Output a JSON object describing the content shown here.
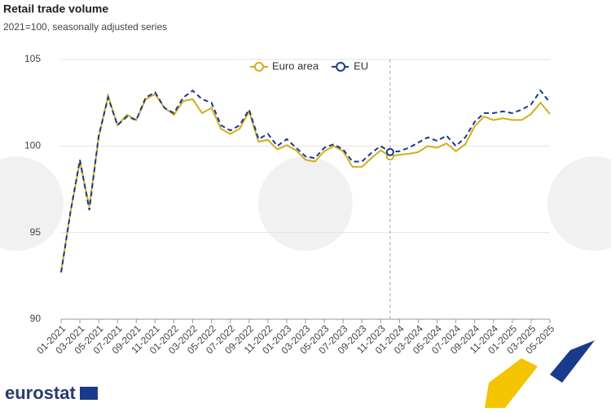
{
  "chart_data": {
    "type": "line",
    "title": "Retail trade volume",
    "subtitle": "2021=100, seasonally adjusted series",
    "source": "eurostat",
    "categories": [
      "01-2021",
      null,
      "03-2021",
      null,
      "05-2021",
      null,
      "07-2021",
      null,
      "09-2021",
      null,
      "11-2021",
      null,
      "01-2022",
      null,
      "03-2022",
      null,
      "05-2022",
      null,
      "07-2022",
      null,
      "09-2022",
      null,
      "11-2022",
      null,
      "01-2023",
      null,
      "03-2023",
      null,
      "05-2023",
      null,
      "07-2023",
      null,
      "09-2023",
      null,
      "11-2023",
      null,
      "01-2024",
      null,
      "03-2024",
      null,
      "05-2024",
      null,
      "07-2024",
      null,
      "09-2024",
      null,
      "11-2024",
      null,
      "01-2025",
      null,
      "03-2025",
      null,
      "05-2025"
    ],
    "series": [
      {
        "name": "Euro area",
        "color": "#d4ad19",
        "dashed": false,
        "values": [
          92.7,
          96.2,
          99.1,
          96.5,
          100.5,
          102.9,
          101.2,
          101.8,
          101.5,
          102.7,
          103.0,
          102.2,
          101.8,
          102.6,
          102.7,
          101.9,
          102.2,
          101.0,
          100.7,
          101.0,
          102.0,
          100.25,
          100.35,
          99.8,
          100.05,
          99.75,
          99.2,
          99.1,
          99.7,
          100.0,
          99.7,
          98.8,
          98.8,
          99.3,
          99.75,
          99.4,
          99.5,
          99.55,
          99.65,
          100.0,
          99.9,
          100.15,
          99.7,
          100.1,
          101.15,
          101.7,
          101.5,
          101.6,
          101.5,
          101.5,
          101.85,
          102.5,
          101.85
        ]
      },
      {
        "name": "EU",
        "color": "#1a3a8c",
        "dashed": true,
        "values": [
          92.7,
          96.2,
          99.2,
          96.3,
          100.6,
          102.8,
          101.2,
          101.7,
          101.5,
          102.8,
          103.1,
          102.2,
          101.9,
          102.8,
          103.2,
          102.7,
          102.5,
          101.2,
          100.9,
          101.2,
          102.1,
          100.4,
          100.7,
          100.0,
          100.4,
          99.9,
          99.4,
          99.3,
          99.9,
          100.1,
          99.8,
          99.1,
          99.1,
          99.6,
          100.0,
          99.65,
          99.7,
          99.9,
          100.2,
          100.5,
          100.3,
          100.6,
          100.0,
          100.5,
          101.4,
          101.9,
          101.9,
          102.0,
          101.9,
          102.1,
          102.4,
          103.2,
          102.5
        ]
      }
    ],
    "ylim": [
      90,
      105
    ],
    "yticks": [
      90,
      95,
      100,
      105
    ],
    "grid": true
  }
}
